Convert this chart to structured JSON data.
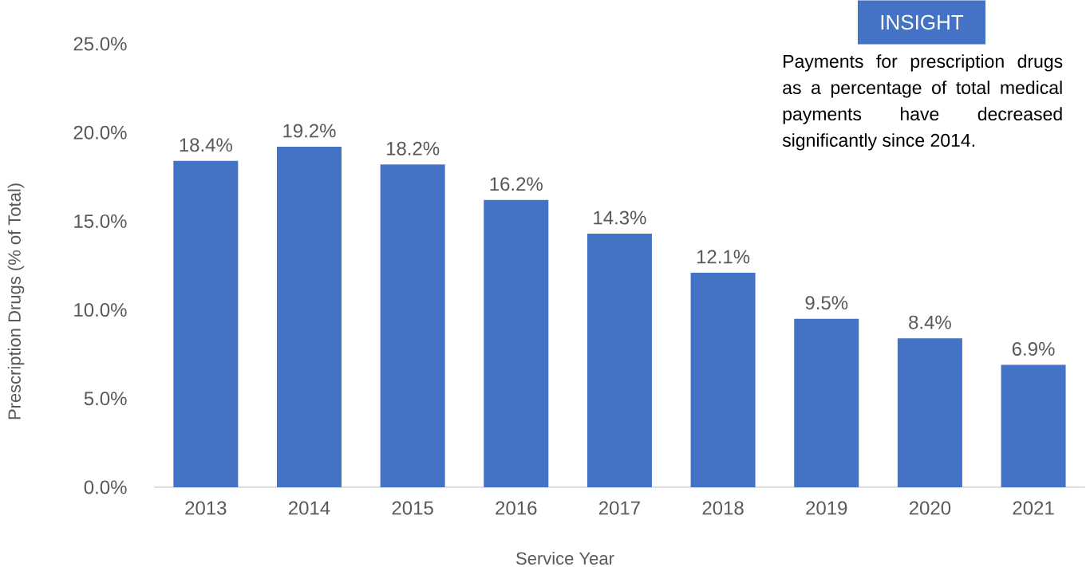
{
  "chart_data": {
    "type": "bar",
    "xlabel": "Service Year",
    "ylabel": "Prescription Drugs (% of Total)",
    "categories": [
      "2013",
      "2014",
      "2015",
      "2016",
      "2017",
      "2018",
      "2019",
      "2020",
      "2021"
    ],
    "values": [
      18.4,
      19.2,
      18.2,
      16.2,
      14.3,
      12.1,
      9.5,
      8.4,
      6.9
    ],
    "value_labels": [
      "18.4%",
      "19.2%",
      "18.2%",
      "16.2%",
      "14.3%",
      "12.1%",
      "9.5%",
      "8.4%",
      "6.9%"
    ],
    "color": "#4472c4",
    "ylim": [
      0,
      25
    ],
    "yticks": [
      {
        "value": 0,
        "label": "0.0%"
      },
      {
        "value": 5,
        "label": "5.0%"
      },
      {
        "value": 10,
        "label": "10.0%"
      },
      {
        "value": 15,
        "label": "15.0%"
      },
      {
        "value": 20,
        "label": "20.0%"
      },
      {
        "value": 25,
        "label": "25.0%"
      }
    ],
    "annotations": [
      "INSIGHT",
      "Payments for prescription drugs as a percentage of total medical payments have decreased significantly since 2014."
    ]
  }
}
